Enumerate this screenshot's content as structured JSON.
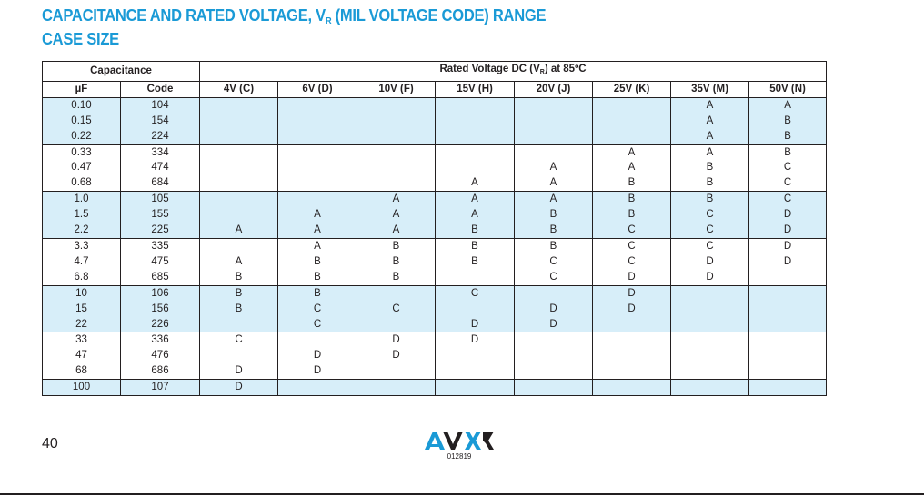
{
  "title": {
    "line1_prefix": "CAPACITANCE AND RATED VOLTAGE, V",
    "line1_sub": "R",
    "line1_suffix": " (MIL VOLTAGE CODE) RANGE",
    "line2": "CASE SIZE"
  },
  "table": {
    "group_capacitance": "Capacitance",
    "group_voltage_prefix": "Rated Voltage DC (V",
    "group_voltage_sub": "R",
    "group_voltage_suffix": ") at 85ºC",
    "columns": [
      "µF",
      "Code",
      "4V (C)",
      "6V (D)",
      "10V (F)",
      "15V (H)",
      "20V (J)",
      "25V (K)",
      "35V (M)",
      "50V (N)"
    ],
    "rows": [
      [
        "0.10",
        "104",
        "",
        "",
        "",
        "",
        "",
        "",
        "A",
        "A"
      ],
      [
        "0.15",
        "154",
        "",
        "",
        "",
        "",
        "",
        "",
        "A",
        "B"
      ],
      [
        "0.22",
        "224",
        "",
        "",
        "",
        "",
        "",
        "",
        "A",
        "B"
      ],
      [
        "0.33",
        "334",
        "",
        "",
        "",
        "",
        "",
        "A",
        "A",
        "B"
      ],
      [
        "0.47",
        "474",
        "",
        "",
        "",
        "",
        "A",
        "A",
        "B",
        "C"
      ],
      [
        "0.68",
        "684",
        "",
        "",
        "",
        "A",
        "A",
        "B",
        "B",
        "C"
      ],
      [
        "1.0",
        "105",
        "",
        "",
        "A",
        "A",
        "A",
        "B",
        "B",
        "C"
      ],
      [
        "1.5",
        "155",
        "",
        "A",
        "A",
        "A",
        "B",
        "B",
        "C",
        "D"
      ],
      [
        "2.2",
        "225",
        "A",
        "A",
        "A",
        "B",
        "B",
        "C",
        "C",
        "D"
      ],
      [
        "3.3",
        "335",
        "",
        "A",
        "B",
        "B",
        "B",
        "C",
        "C",
        "D"
      ],
      [
        "4.7",
        "475",
        "A",
        "B",
        "B",
        "B",
        "C",
        "C",
        "D",
        "D"
      ],
      [
        "6.8",
        "685",
        "B",
        "B",
        "B",
        "",
        "C",
        "D",
        "D",
        ""
      ],
      [
        "10",
        "106",
        "B",
        "B",
        "",
        "C",
        "",
        "D",
        "",
        ""
      ],
      [
        "15",
        "156",
        "B",
        "C",
        "C",
        "",
        "D",
        "D",
        "",
        ""
      ],
      [
        "22",
        "226",
        "",
        "C",
        "",
        "D",
        "D",
        "",
        "",
        ""
      ],
      [
        "33",
        "336",
        "C",
        "",
        "D",
        "D",
        "",
        "",
        "",
        ""
      ],
      [
        "47",
        "476",
        "",
        "D",
        "D",
        "",
        "",
        "",
        "",
        ""
      ],
      [
        "68",
        "686",
        "D",
        "D",
        "",
        "",
        "",
        "",
        "",
        ""
      ],
      [
        "100",
        "107",
        "D",
        "",
        "",
        "",
        "",
        "",
        "",
        ""
      ]
    ]
  },
  "footer": {
    "page_number": "40",
    "doc_code": "012819"
  },
  "colors": {
    "title": "#1a9ad6",
    "shade": "#d7eef9",
    "text": "#231f20"
  },
  "icons": {
    "logo": "avx-logo"
  }
}
